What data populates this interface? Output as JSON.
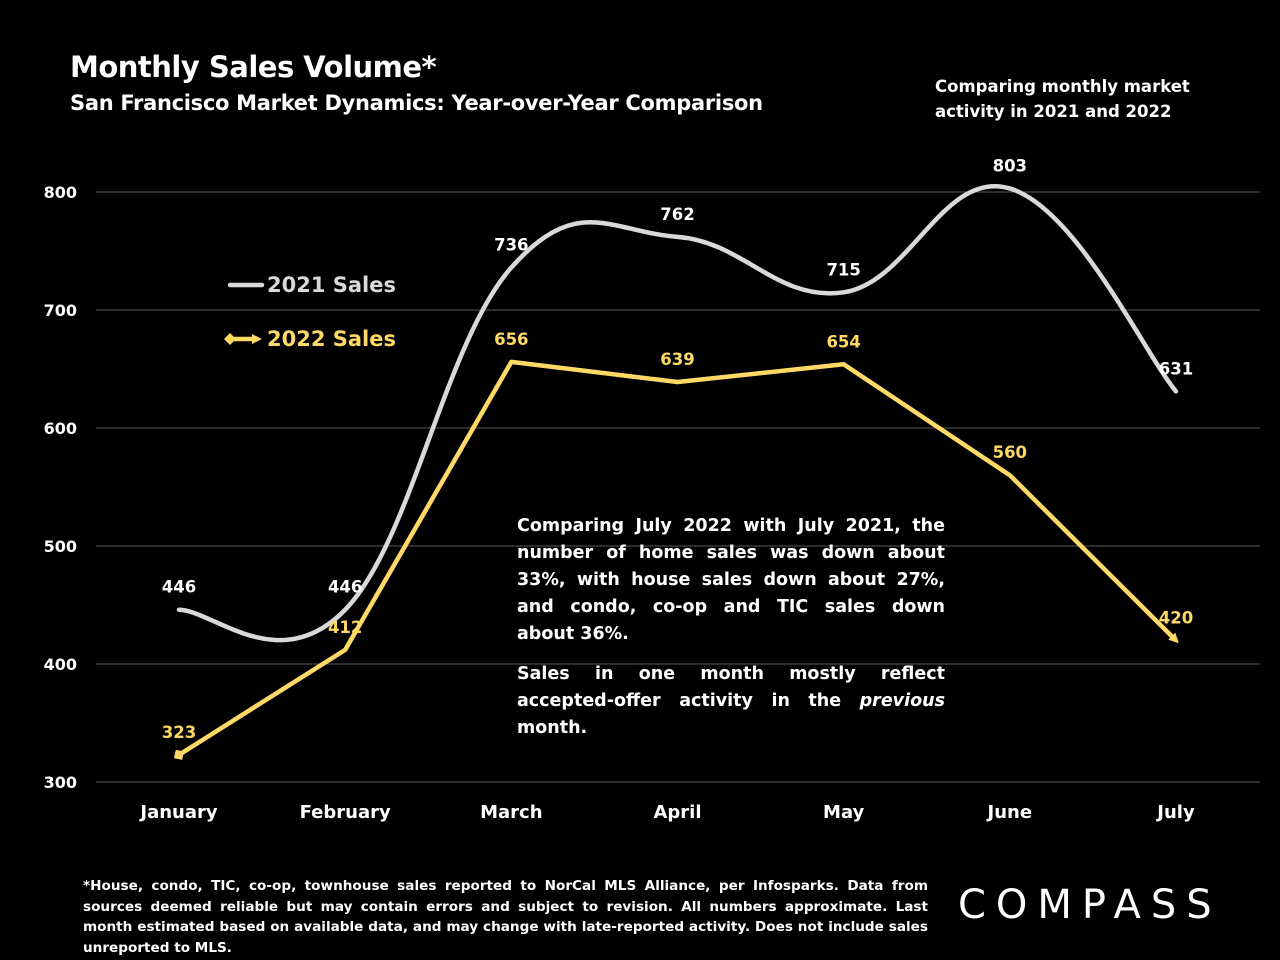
{
  "header": {
    "title": "Monthly Sales Volume*",
    "subtitle": "San Francisco Market Dynamics: Year-over-Year Comparison",
    "corner_note": "Comparing monthly market activity in 2021 and 2022"
  },
  "callout": {
    "paragraph1": "Comparing July 2022 with July 2021, the number of home sales was down about 33%, with house sales down about 27%, and condo, co-op and TIC sales down about 36%.",
    "paragraph2_before": "Sales in one month mostly reflect accepted-offer activity in the ",
    "paragraph2_em": "previous",
    "paragraph2_after": " month."
  },
  "footnote": "*House, condo, TIC, co-op, townhouse sales reported to NorCal MLS Alliance, per Infosparks. Data from sources deemed reliable but may contain errors and subject to revision. All numbers approximate. Last month estimated based on available data, and may change with late-reported activity. Does not include sales unreported to MLS.",
  "logo": "COMPASS",
  "colors": {
    "background": "#000000",
    "series_2021": "#d9d9d9",
    "series_2022": "#ffd966",
    "grid": "#595959",
    "text": "#ffffff"
  },
  "chart_data": {
    "type": "line",
    "categories": [
      "January",
      "February",
      "March",
      "April",
      "May",
      "June",
      "July"
    ],
    "ylim": [
      300,
      800
    ],
    "yticks": [
      300,
      400,
      500,
      600,
      700,
      800
    ],
    "grid": true,
    "legend_position": "upper-left",
    "series": [
      {
        "name": "2021 Sales",
        "values": [
          446,
          446,
          736,
          762,
          715,
          803,
          631
        ],
        "smooth": true,
        "color": "#d9d9d9"
      },
      {
        "name": "2022 Sales",
        "values": [
          323,
          412,
          656,
          639,
          654,
          560,
          420
        ],
        "smooth": false,
        "color": "#ffd966"
      }
    ]
  }
}
